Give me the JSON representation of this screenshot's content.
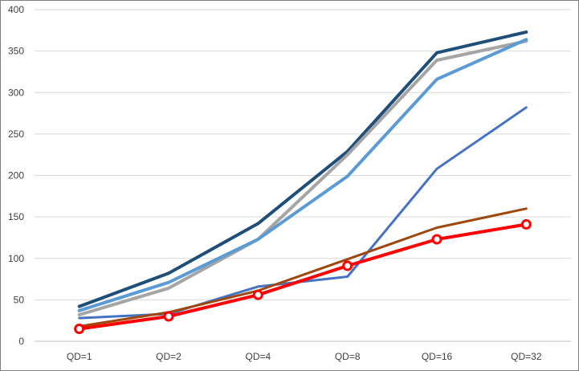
{
  "chart_data": {
    "type": "line",
    "title": "",
    "xlabel": "",
    "ylabel": "",
    "categories": [
      "QD=1",
      "QD=2",
      "QD=4",
      "QD=8",
      "QD=16",
      "QD=32"
    ],
    "y_ticks": [
      "0",
      "50",
      "100",
      "150",
      "200",
      "250",
      "300",
      "350",
      "400"
    ],
    "ylim": [
      0,
      400
    ],
    "grid": "horizontal",
    "legend": "none",
    "series": [
      {
        "color": "#1f4e79",
        "width": 4,
        "marker": "none",
        "values": [
          42,
          82,
          142,
          229,
          348,
          373
        ]
      },
      {
        "color": "#a5a5a5",
        "width": 4,
        "marker": "none",
        "values": [
          32,
          64,
          123,
          225,
          339,
          362
        ]
      },
      {
        "color": "#5b9bd5",
        "width": 4,
        "marker": "none",
        "values": [
          37,
          71,
          123,
          199,
          316,
          364
        ]
      },
      {
        "color": "#4472c4",
        "width": 3,
        "marker": "none",
        "values": [
          28,
          33,
          66,
          78,
          208,
          282
        ]
      },
      {
        "color": "#9e480e",
        "width": 3,
        "marker": "none",
        "values": [
          18,
          35,
          61,
          99,
          137,
          160
        ]
      },
      {
        "color": "#ff0000",
        "width": 4,
        "marker": "circle",
        "values": [
          15,
          30,
          56,
          91,
          123,
          141
        ]
      }
    ]
  }
}
